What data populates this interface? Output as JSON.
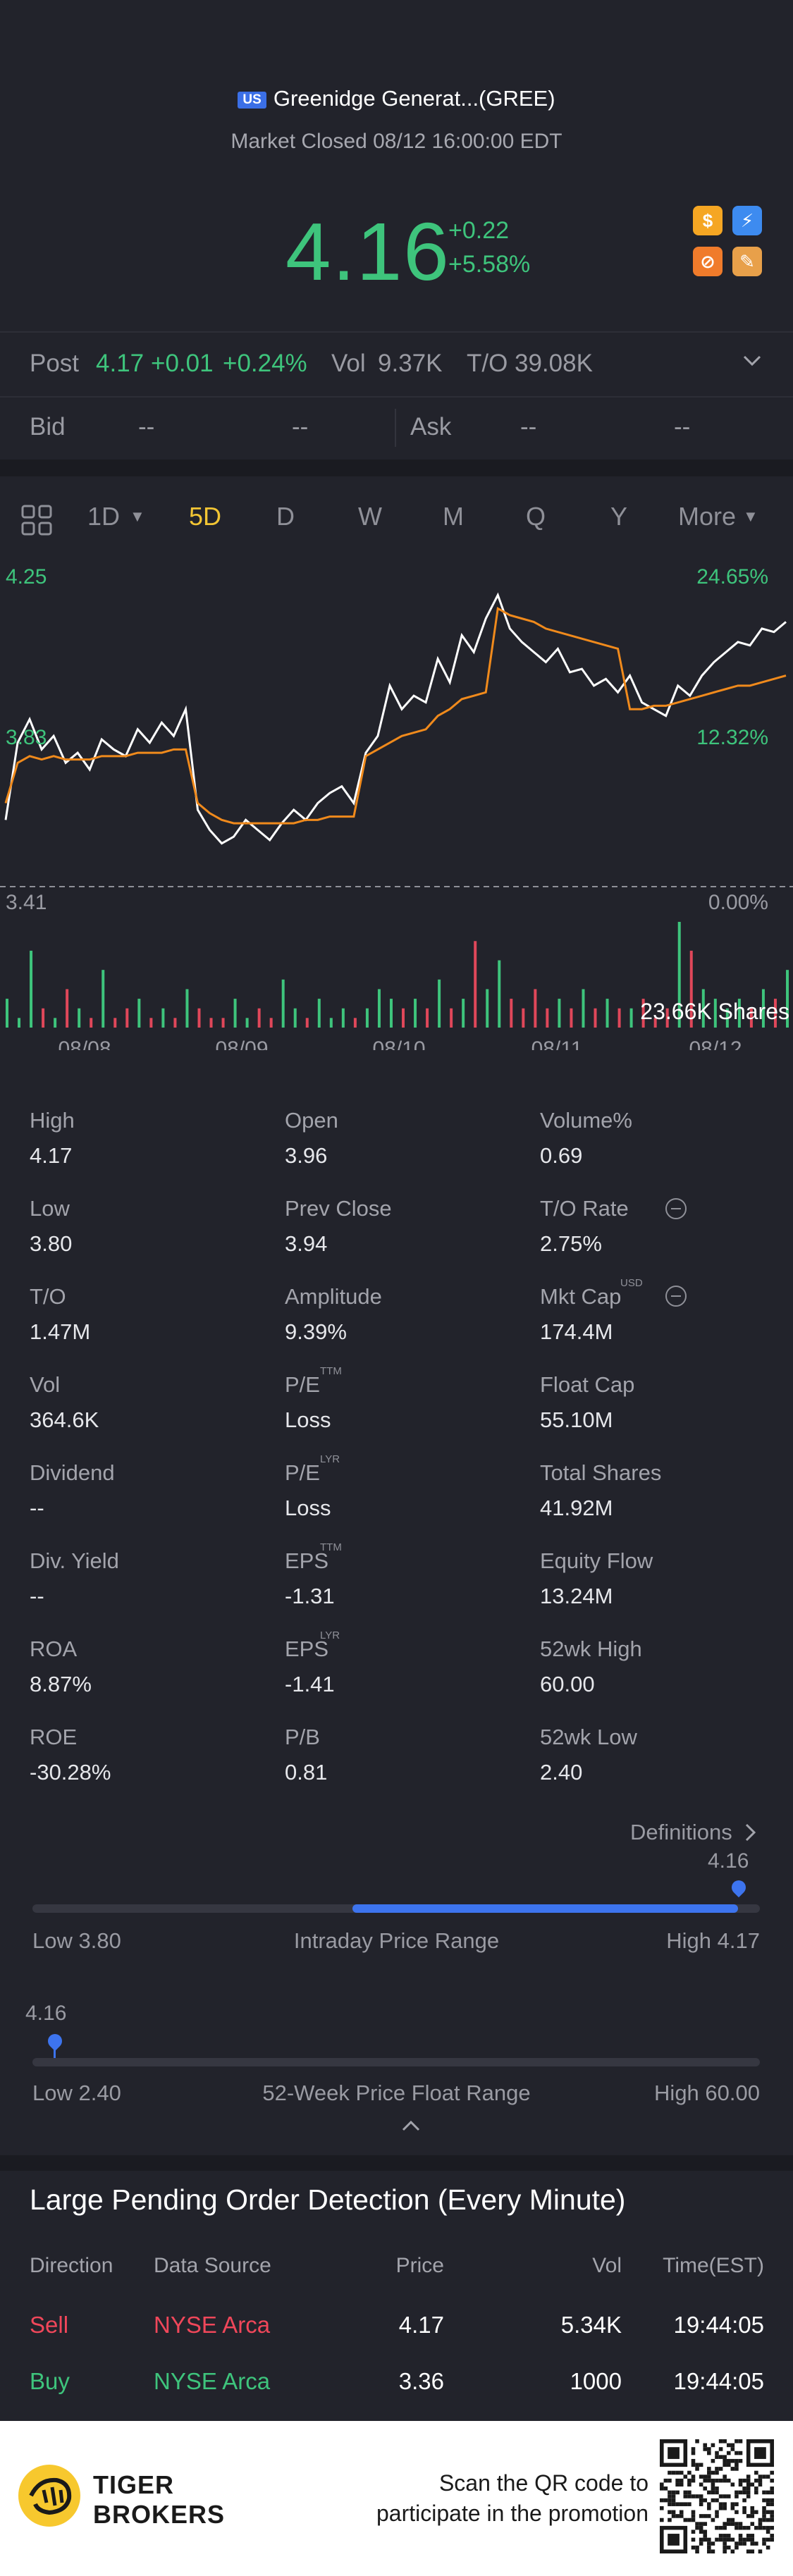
{
  "header": {
    "market_flag": "US",
    "title": "Greenidge Generat...(GREE)",
    "status": "Market Closed 08/12 16:00:00 EDT",
    "price": "4.16",
    "change": "+0.22",
    "change_pct": "+5.58%",
    "badges": [
      {
        "icon": "dollar-icon",
        "glyph": "$",
        "color": "#f5a623"
      },
      {
        "icon": "lightning-icon",
        "glyph": "⚡",
        "color": "#3d8bf0"
      },
      {
        "icon": "no-short-icon",
        "glyph": "⊘",
        "color": "#f07b2b"
      },
      {
        "icon": "education-icon",
        "glyph": "✎",
        "color": "#e8a04a"
      }
    ]
  },
  "post": {
    "label": "Post",
    "price": "4.17",
    "change": "+0.01",
    "change_pct": "+0.24%",
    "vol_label": "Vol",
    "vol": "9.37K",
    "to_label": "T/O",
    "to": "39.08K"
  },
  "quote": {
    "bid_label": "Bid",
    "bid_price": "--",
    "bid_size": "--",
    "ask_label": "Ask",
    "ask_price": "--",
    "ask_size": "--"
  },
  "tabs": {
    "items": [
      "1D",
      "5D",
      "D",
      "W",
      "M",
      "Q",
      "Y",
      "More"
    ],
    "active": "5D"
  },
  "chart_data": {
    "type": "line",
    "title": "",
    "x_labels": [
      "08/08",
      "08/09",
      "08/10",
      "08/11",
      "08/12"
    ],
    "y_left_top": "4.25",
    "y_left_mid": "3.83",
    "y_left_bottom": "3.41",
    "y_right_top": "24.65%",
    "y_right_mid": "12.32%",
    "y_right_bottom": "0.00%",
    "ylim": [
      3.41,
      4.25
    ],
    "volume_label": "23.66K Shares",
    "series": [
      {
        "name": "price",
        "color": "#ffffff",
        "values": [
          3.55,
          3.78,
          3.85,
          3.76,
          3.8,
          3.72,
          3.75,
          3.7,
          3.79,
          3.76,
          3.74,
          3.82,
          3.78,
          3.84,
          3.8,
          3.88,
          3.58,
          3.52,
          3.48,
          3.5,
          3.55,
          3.52,
          3.49,
          3.54,
          3.58,
          3.55,
          3.6,
          3.63,
          3.65,
          3.6,
          3.75,
          3.8,
          3.95,
          3.88,
          3.92,
          3.9,
          4.03,
          3.96,
          4.1,
          4.05,
          4.15,
          4.22,
          4.12,
          4.08,
          4.05,
          4.02,
          4.06,
          3.99,
          4.0,
          3.95,
          3.97,
          3.93,
          3.98,
          3.9,
          3.88,
          3.86,
          3.95,
          3.92,
          3.98,
          4.02,
          4.05,
          4.08,
          4.07,
          4.12,
          4.11,
          4.14
        ]
      },
      {
        "name": "average",
        "color": "#f08a1c",
        "values": [
          3.6,
          3.72,
          3.74,
          3.73,
          3.74,
          3.73,
          3.73,
          3.73,
          3.74,
          3.74,
          3.74,
          3.75,
          3.75,
          3.75,
          3.76,
          3.76,
          3.6,
          3.57,
          3.55,
          3.54,
          3.54,
          3.54,
          3.54,
          3.54,
          3.54,
          3.55,
          3.55,
          3.56,
          3.56,
          3.56,
          3.74,
          3.76,
          3.78,
          3.8,
          3.81,
          3.82,
          3.86,
          3.88,
          3.91,
          3.92,
          3.93,
          4.18,
          4.16,
          4.15,
          4.14,
          4.12,
          4.11,
          4.1,
          4.09,
          4.08,
          4.07,
          4.06,
          3.88,
          3.88,
          3.89,
          3.89,
          3.9,
          3.91,
          3.92,
          3.93,
          3.94,
          3.95,
          3.95,
          3.96,
          3.97,
          3.98
        ]
      }
    ],
    "volume": [
      3,
      1,
      8,
      2,
      1,
      4,
      2,
      1,
      6,
      1,
      2,
      3,
      1,
      2,
      1,
      4,
      2,
      1,
      1,
      3,
      1,
      2,
      1,
      5,
      2,
      1,
      3,
      1,
      2,
      1,
      2,
      4,
      3,
      2,
      3,
      2,
      5,
      2,
      3,
      9,
      4,
      7,
      3,
      2,
      4,
      2,
      3,
      2,
      4,
      2,
      3,
      2,
      2,
      3,
      1,
      2,
      11,
      8,
      4,
      3,
      2,
      3,
      2,
      4,
      3,
      6
    ]
  },
  "stats": {
    "col1": [
      {
        "label": "High",
        "value": "4.17"
      },
      {
        "label": "Low",
        "value": "3.80"
      },
      {
        "label": "T/O",
        "value": "1.47M"
      },
      {
        "label": "Vol",
        "value": "364.6K"
      },
      {
        "label": "Dividend",
        "value": "--"
      },
      {
        "label": "Div. Yield",
        "value": "--"
      },
      {
        "label": "ROA",
        "value": "8.87%"
      },
      {
        "label": "ROE",
        "value": "-30.28%"
      }
    ],
    "col2": [
      {
        "label": "Open",
        "value": "3.96",
        "sup": ""
      },
      {
        "label": "Prev Close",
        "value": "3.94",
        "sup": ""
      },
      {
        "label": "Amplitude",
        "value": "9.39%",
        "sup": ""
      },
      {
        "label": "P/E",
        "value": "Loss",
        "sup": "TTM"
      },
      {
        "label": "P/E",
        "value": "Loss",
        "sup": "LYR"
      },
      {
        "label": "EPS",
        "value": "-1.31",
        "sup": "TTM"
      },
      {
        "label": "EPS",
        "value": "-1.41",
        "sup": "LYR"
      },
      {
        "label": "P/B",
        "value": "0.81",
        "sup": ""
      }
    ],
    "col3": [
      {
        "label": "Volume%",
        "value": "0.69",
        "sup": ""
      },
      {
        "label": "T/O Rate",
        "value": "2.75%",
        "sup": ""
      },
      {
        "label": "Mkt Cap",
        "value": "174.4M",
        "sup": "USD"
      },
      {
        "label": "Float Cap",
        "value": "55.10M",
        "sup": ""
      },
      {
        "label": "Total Shares",
        "value": "41.92M",
        "sup": ""
      },
      {
        "label": "Equity Flow",
        "value": "13.24M",
        "sup": ""
      },
      {
        "label": "52wk High",
        "value": "60.00",
        "sup": ""
      },
      {
        "label": "52wk Low",
        "value": "2.40",
        "sup": ""
      }
    ],
    "definitions_label": "Definitions"
  },
  "ranges": {
    "intraday": {
      "current": "4.16",
      "low": "Low 3.80",
      "label": "Intraday Price Range",
      "high": "High 4.17",
      "position": 0.97
    },
    "week52": {
      "current": "4.16",
      "low": "Low 2.40",
      "label": "52-Week Price Float Range",
      "high": "High 60.00",
      "position": 0.03
    }
  },
  "pending": {
    "title": "Large Pending Order Detection (Every Minute)",
    "headers": [
      "Direction",
      "Data Source",
      "Price",
      "Vol",
      "Time(EST)"
    ],
    "rows": [
      {
        "direction": "Sell",
        "source": "NYSE Arca",
        "price": "4.17",
        "vol": "5.34K",
        "time": "19:44:05",
        "color": "red"
      },
      {
        "direction": "Buy",
        "source": "NYSE Arca",
        "price": "3.36",
        "vol": "1000",
        "time": "19:44:05",
        "color": "green"
      }
    ]
  },
  "footer": {
    "brand_line1": "TIGER",
    "brand_line2": "BROKERS",
    "scan_line1": "Scan the QR code to",
    "scan_line2": "participate in the promotion"
  }
}
